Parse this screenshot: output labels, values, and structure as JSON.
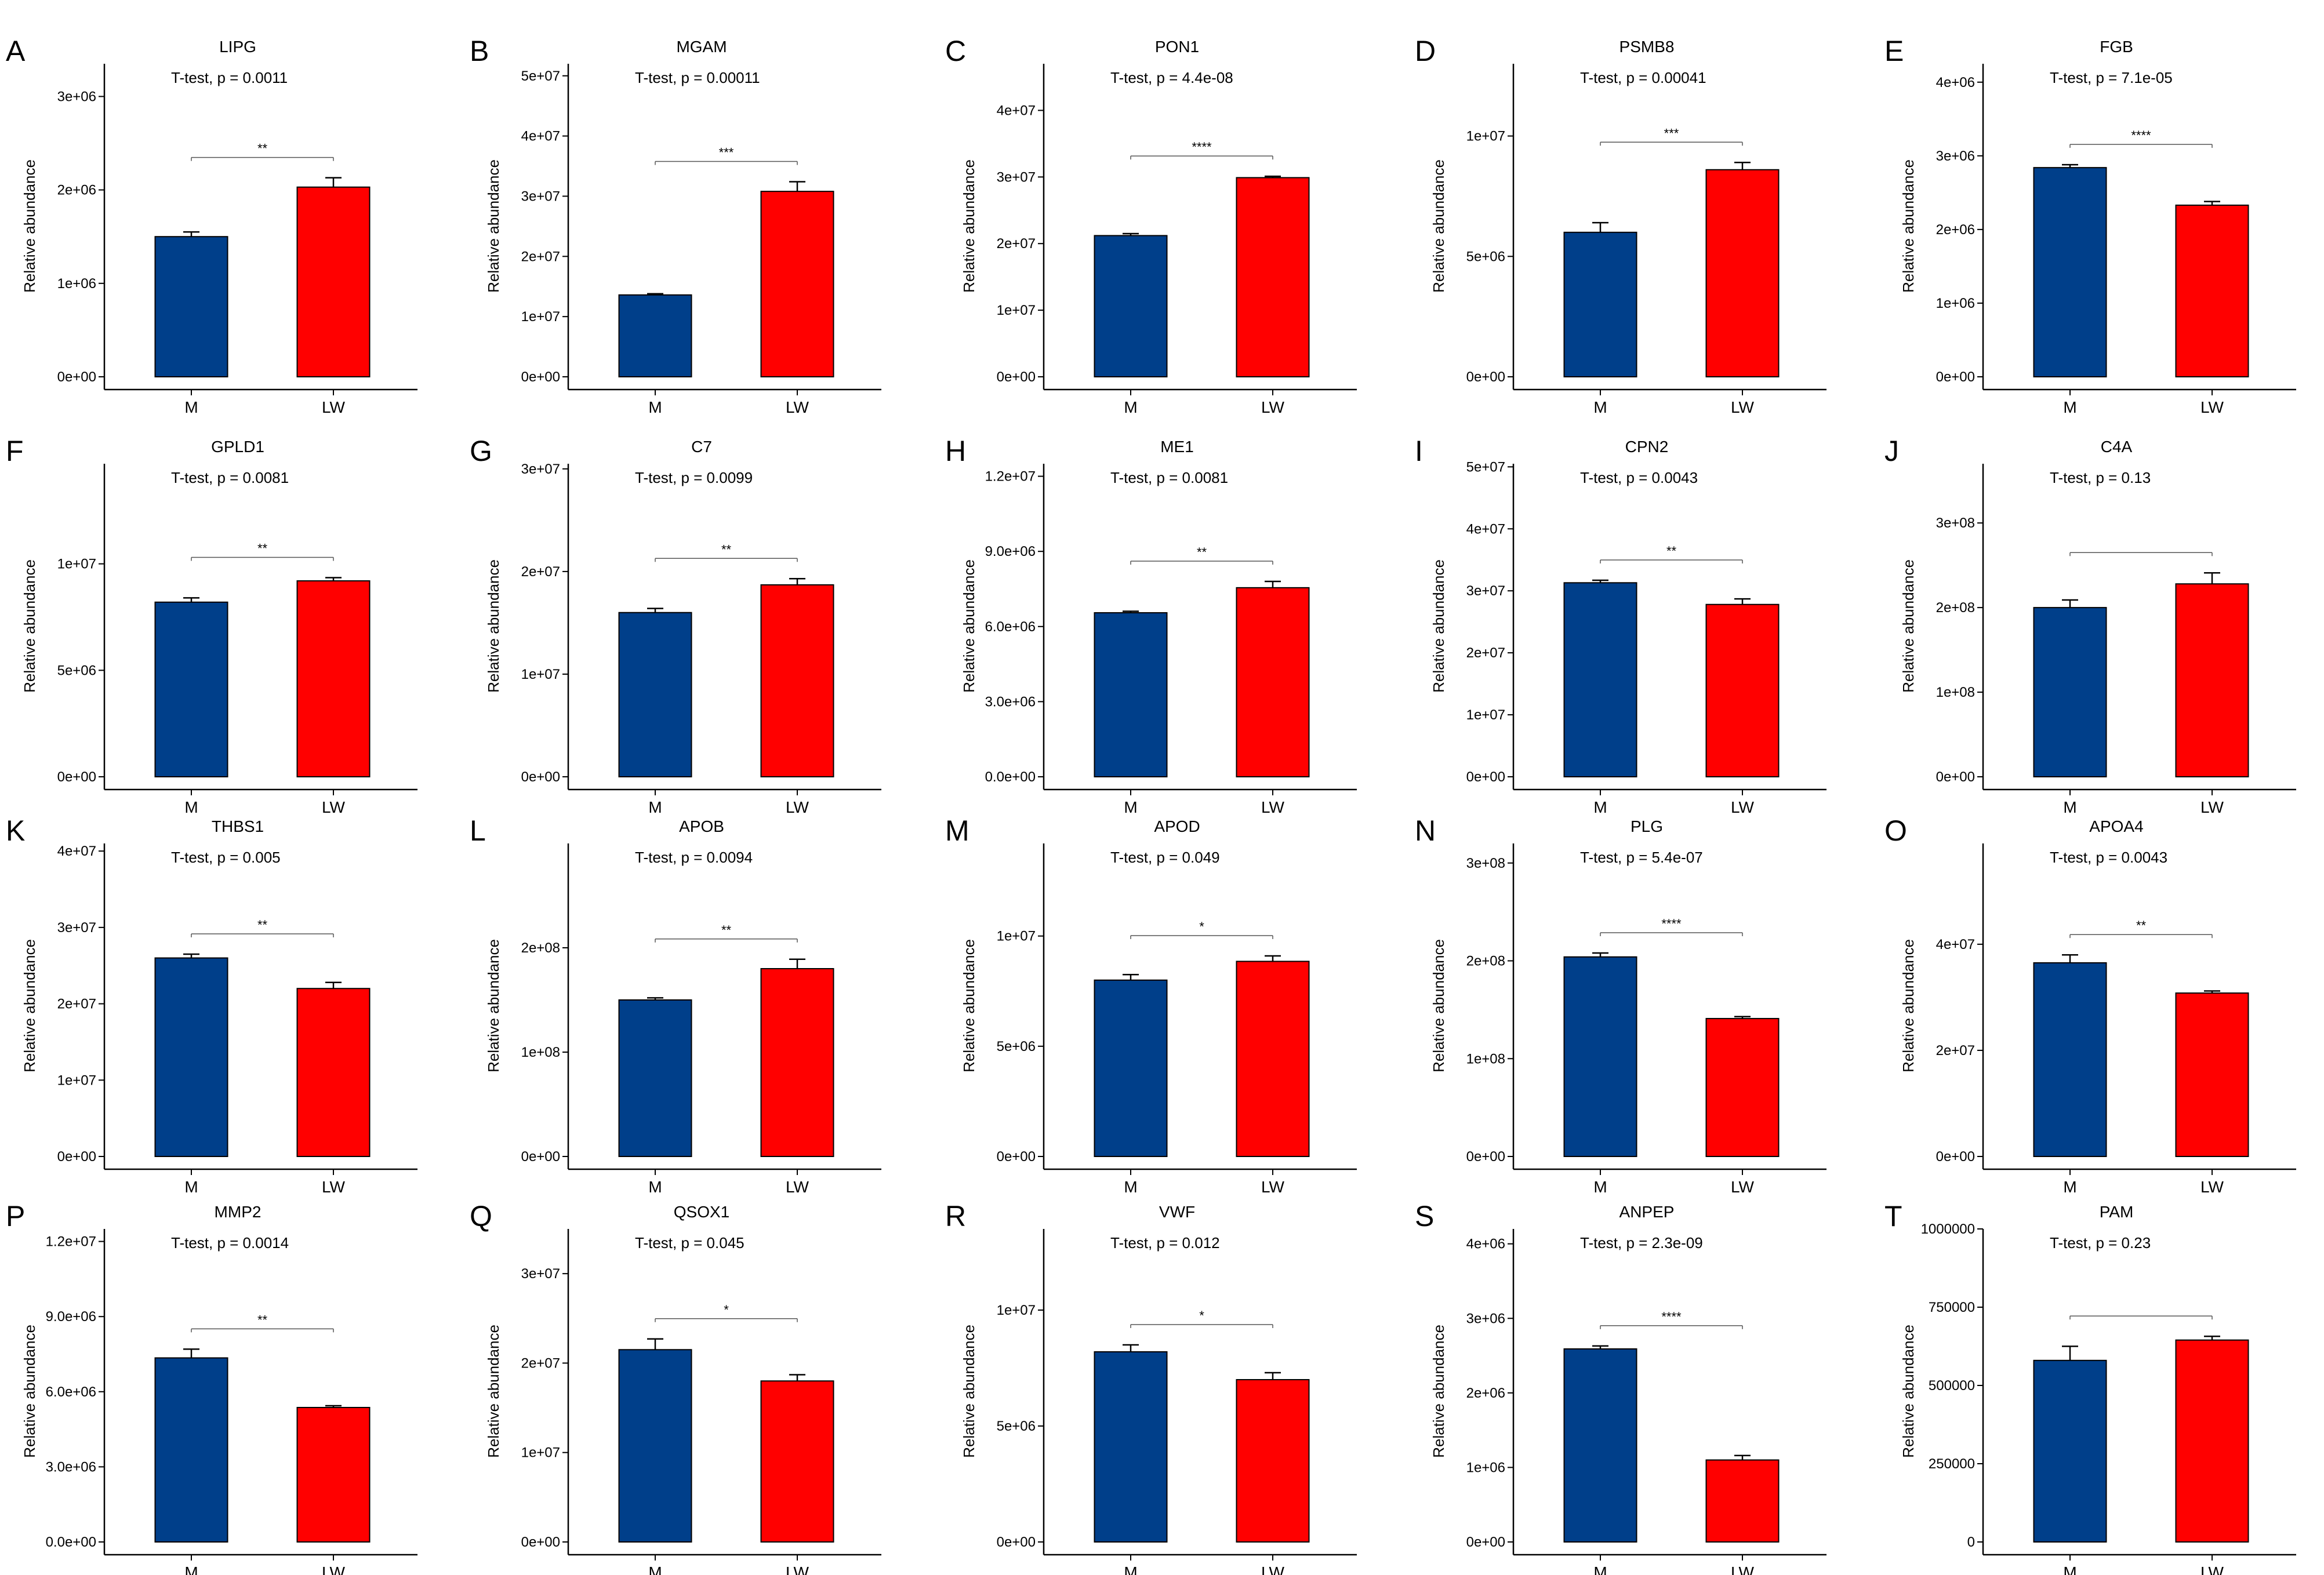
{
  "figure": {
    "colors": {
      "M": "#003f8a",
      "LW": "#ff0000",
      "axis": "#000000",
      "bracket": "#555555"
    },
    "ylabel": "Relative abundance",
    "categories": [
      "M",
      "LW"
    ]
  },
  "chart_data": [
    {
      "type": "bar",
      "panel": "A",
      "title": "LIPG",
      "stat": "T-test, p = 0.0011",
      "sig": "**",
      "categories": [
        "M",
        "LW"
      ],
      "values": [
        1500000,
        2030000
      ],
      "errors": [
        50000,
        100000
      ],
      "yticks": [
        0,
        1000000,
        2000000,
        3000000
      ],
      "tick_labels": [
        "0e+00",
        "1e+06",
        "2e+06",
        "3e+06"
      ],
      "ylim": [
        0,
        3350000
      ]
    },
    {
      "type": "bar",
      "panel": "B",
      "title": "MGAM",
      "stat": "T-test, p = 0.00011",
      "sig": "***",
      "categories": [
        "M",
        "LW"
      ],
      "values": [
        13600000,
        30800000
      ],
      "errors": [
        200000,
        1600000
      ],
      "yticks": [
        0,
        10000000,
        20000000,
        30000000,
        40000000,
        50000000
      ],
      "tick_labels": [
        "0e+00",
        "1e+07",
        "2e+07",
        "3e+07",
        "4e+07",
        "5e+07"
      ],
      "ylim": [
        0,
        52000000
      ]
    },
    {
      "type": "bar",
      "panel": "C",
      "title": "PON1",
      "stat": "T-test, p = 4.4e-08",
      "sig": "****",
      "categories": [
        "M",
        "LW"
      ],
      "values": [
        21200000,
        29900000
      ],
      "errors": [
        300000,
        200000
      ],
      "yticks": [
        0,
        10000000,
        20000000,
        30000000,
        40000000
      ],
      "tick_labels": [
        "0e+00",
        "1e+07",
        "2e+07",
        "3e+07",
        "4e+07"
      ],
      "ylim": [
        0,
        47000000
      ]
    },
    {
      "type": "bar",
      "panel": "D",
      "title": "PSMB8",
      "stat": "T-test, p = 0.00041",
      "sig": "***",
      "categories": [
        "M",
        "LW"
      ],
      "values": [
        6000000,
        8600000
      ],
      "errors": [
        400000,
        300000
      ],
      "yticks": [
        0,
        5000000,
        10000000
      ],
      "tick_labels": [
        "0e+00",
        "5e+06",
        "1e+07"
      ],
      "ylim": [
        0,
        13000000
      ]
    },
    {
      "type": "bar",
      "panel": "E",
      "title": "FGB",
      "stat": "T-test, p = 7.1e-05",
      "sig": "****",
      "categories": [
        "M",
        "LW"
      ],
      "values": [
        2840000,
        2330000
      ],
      "errors": [
        40000,
        50000
      ],
      "yticks": [
        0,
        1000000,
        2000000,
        3000000,
        4000000
      ],
      "tick_labels": [
        "0e+00",
        "1e+06",
        "2e+06",
        "3e+06",
        "4e+06"
      ],
      "ylim": [
        0,
        4250000
      ]
    },
    {
      "type": "bar",
      "panel": "F",
      "title": "GPLD1",
      "stat": "T-test, p = 0.0081",
      "sig": "**",
      "categories": [
        "M",
        "LW"
      ],
      "values": [
        8200000,
        9200000
      ],
      "errors": [
        200000,
        150000
      ],
      "yticks": [
        0,
        5000000,
        10000000
      ],
      "tick_labels": [
        "0e+00",
        "5e+06",
        "1e+07"
      ],
      "ylim": [
        0,
        14700000
      ]
    },
    {
      "type": "bar",
      "panel": "G",
      "title": "C7",
      "stat": "T-test, p = 0.0099",
      "sig": "**",
      "categories": [
        "M",
        "LW"
      ],
      "values": [
        16000000,
        18700000
      ],
      "errors": [
        400000,
        600000
      ],
      "yticks": [
        0,
        10000000,
        20000000,
        30000000
      ],
      "tick_labels": [
        "0e+00",
        "1e+07",
        "2e+07",
        "3e+07"
      ],
      "ylim": [
        0,
        30500000
      ]
    },
    {
      "type": "bar",
      "panel": "H",
      "title": "ME1",
      "stat": "T-test, p = 0.0081",
      "sig": "**",
      "categories": [
        "M",
        "LW"
      ],
      "values": [
        6550000,
        7550000
      ],
      "errors": [
        60000,
        250000
      ],
      "yticks": [
        0,
        3000000,
        6000000,
        9000000,
        12000000
      ],
      "tick_labels": [
        "0.0e+00",
        "3.0e+06",
        "6.0e+06",
        "9.0e+06",
        "1.2e+07"
      ],
      "ylim": [
        0,
        12500000
      ]
    },
    {
      "type": "bar",
      "panel": "I",
      "title": "CPN2",
      "stat": "T-test, p = 0.0043",
      "sig": "**",
      "categories": [
        "M",
        "LW"
      ],
      "values": [
        31300000,
        27800000
      ],
      "errors": [
        400000,
        900000
      ],
      "yticks": [
        0,
        10000000,
        20000000,
        30000000,
        40000000,
        50000000
      ],
      "tick_labels": [
        "0e+00",
        "1e+07",
        "2e+07",
        "3e+07",
        "4e+07",
        "5e+07"
      ],
      "ylim": [
        0,
        50500000
      ]
    },
    {
      "type": "bar",
      "panel": "J",
      "title": "C4A",
      "stat": "T-test, p = 0.13",
      "sig": "",
      "categories": [
        "M",
        "LW"
      ],
      "values": [
        200000000,
        228000000
      ],
      "errors": [
        9000000,
        13000000
      ],
      "yticks": [
        0,
        100000000,
        200000000,
        300000000
      ],
      "tick_labels": [
        "0e+00",
        "1e+08",
        "2e+08",
        "3e+08"
      ],
      "ylim": [
        0,
        370000000
      ]
    },
    {
      "type": "bar",
      "panel": "K",
      "title": "THBS1",
      "stat": "T-test, p = 0.005",
      "sig": "**",
      "categories": [
        "M",
        "LW"
      ],
      "values": [
        26000000,
        22000000
      ],
      "errors": [
        500000,
        800000
      ],
      "yticks": [
        0,
        10000000,
        20000000,
        30000000,
        40000000
      ],
      "tick_labels": [
        "0e+00",
        "1e+07",
        "2e+07",
        "3e+07",
        "4e+07"
      ],
      "ylim": [
        0,
        41000000
      ]
    },
    {
      "type": "bar",
      "panel": "L",
      "title": "APOB",
      "stat": "T-test, p = 0.0094",
      "sig": "**",
      "categories": [
        "M",
        "LW"
      ],
      "values": [
        150000000,
        180000000
      ],
      "errors": [
        2000000,
        9000000
      ],
      "yticks": [
        0,
        100000000,
        200000000
      ],
      "tick_labels": [
        "0e+00",
        "1e+08",
        "2e+08"
      ],
      "ylim": [
        0,
        300000000
      ]
    },
    {
      "type": "bar",
      "panel": "M",
      "title": "APOD",
      "stat": "T-test, p = 0.049",
      "sig": "*",
      "categories": [
        "M",
        "LW"
      ],
      "values": [
        8000000,
        8850000
      ],
      "errors": [
        250000,
        250000
      ],
      "yticks": [
        0,
        5000000,
        10000000
      ],
      "tick_labels": [
        "0e+00",
        "5e+06",
        "1e+07"
      ],
      "ylim": [
        0,
        14200000
      ]
    },
    {
      "type": "bar",
      "panel": "N",
      "title": "PLG",
      "stat": "T-test, p = 5.4e-07",
      "sig": "****",
      "categories": [
        "M",
        "LW"
      ],
      "values": [
        204000000,
        141000000
      ],
      "errors": [
        4000000,
        2000000
      ],
      "yticks": [
        0,
        100000000,
        200000000,
        300000000
      ],
      "tick_labels": [
        "0e+00",
        "1e+08",
        "2e+08",
        "3e+08"
      ],
      "ylim": [
        0,
        320000000
      ]
    },
    {
      "type": "bar",
      "panel": "O",
      "title": "APOA4",
      "stat": "T-test, p = 0.0043",
      "sig": "**",
      "categories": [
        "M",
        "LW"
      ],
      "values": [
        36500000,
        30800000
      ],
      "errors": [
        1500000,
        400000
      ],
      "yticks": [
        0,
        20000000,
        40000000
      ],
      "tick_labels": [
        "0e+00",
        "2e+07",
        "4e+07"
      ],
      "ylim": [
        0,
        59000000
      ]
    },
    {
      "type": "bar",
      "panel": "P",
      "title": "MMP2",
      "stat": "T-test, p = 0.0014",
      "sig": "**",
      "categories": [
        "M",
        "LW"
      ],
      "values": [
        7350000,
        5370000
      ],
      "errors": [
        350000,
        70000
      ],
      "yticks": [
        0,
        3000000,
        6000000,
        9000000,
        12000000
      ],
      "tick_labels": [
        "0.0e+00",
        "3.0e+06",
        "6.0e+06",
        "9.0e+06",
        "1.2e+07"
      ],
      "ylim": [
        0,
        12500000
      ]
    },
    {
      "type": "bar",
      "panel": "Q",
      "title": "QSOX1",
      "stat": "T-test, p = 0.045",
      "sig": "*",
      "categories": [
        "M",
        "LW"
      ],
      "values": [
        21500000,
        18000000
      ],
      "errors": [
        1200000,
        700000
      ],
      "yticks": [
        0,
        10000000,
        20000000,
        30000000
      ],
      "tick_labels": [
        "0e+00",
        "1e+07",
        "2e+07",
        "3e+07"
      ],
      "ylim": [
        0,
        35000000
      ]
    },
    {
      "type": "bar",
      "panel": "R",
      "title": "VWF",
      "stat": "T-test, p = 0.012",
      "sig": "*",
      "categories": [
        "M",
        "LW"
      ],
      "values": [
        8200000,
        7000000
      ],
      "errors": [
        300000,
        300000
      ],
      "yticks": [
        0,
        5000000,
        10000000
      ],
      "tick_labels": [
        "0e+00",
        "5e+06",
        "1e+07"
      ],
      "ylim": [
        0,
        13500000
      ]
    },
    {
      "type": "bar",
      "panel": "S",
      "title": "ANPEP",
      "stat": "T-test, p = 2.3e-09",
      "sig": "****",
      "categories": [
        "M",
        "LW"
      ],
      "values": [
        2590000,
        1100000
      ],
      "errors": [
        40000,
        60000
      ],
      "yticks": [
        0,
        1000000,
        2000000,
        3000000,
        4000000
      ],
      "tick_labels": [
        "0e+00",
        "1e+06",
        "2e+06",
        "3e+06",
        "4e+06"
      ],
      "ylim": [
        0,
        4200000
      ]
    },
    {
      "type": "bar",
      "panel": "T",
      "title": "PAM",
      "stat": "T-test, p = 0.23",
      "sig": "",
      "categories": [
        "M",
        "LW"
      ],
      "values": [
        580000,
        645000
      ],
      "errors": [
        45000,
        12000
      ],
      "yticks": [
        0,
        250000,
        500000,
        750000,
        1000000
      ],
      "tick_labels": [
        "0",
        "250000",
        "500000",
        "750000",
        "1000000"
      ],
      "ylim": [
        0,
        1000000
      ]
    }
  ]
}
